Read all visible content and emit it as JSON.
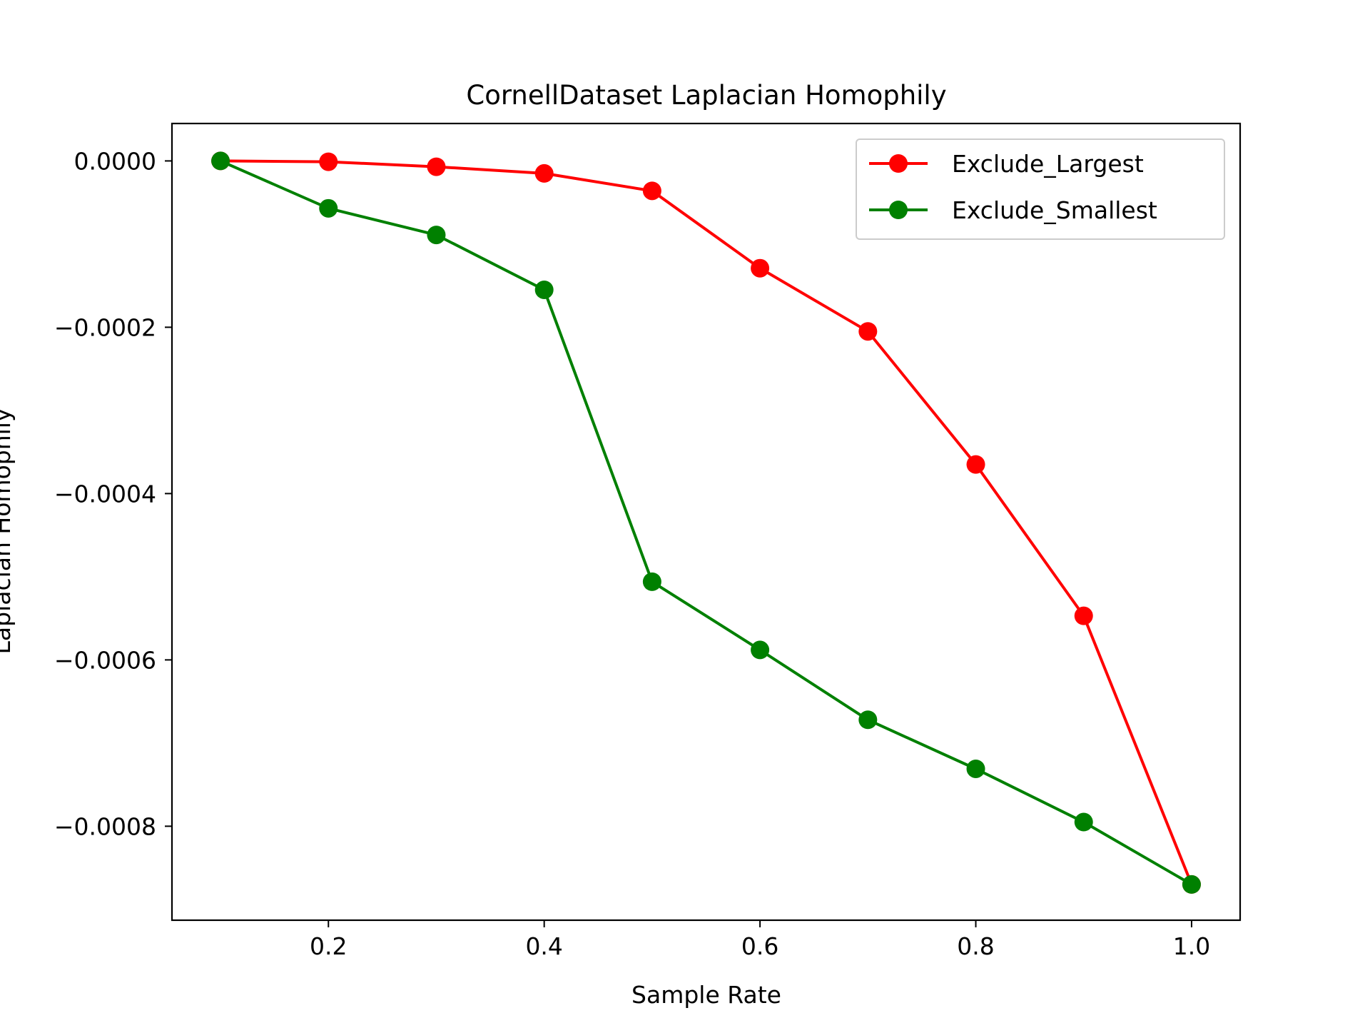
{
  "chart_data": {
    "type": "line",
    "title": "CornellDataset Laplacian Homophily",
    "xlabel": "Sample Rate",
    "ylabel": "Laplacian Homophily",
    "x": [
      0.1,
      0.2,
      0.3,
      0.4,
      0.5,
      0.6,
      0.7,
      0.8,
      0.9,
      1.0
    ],
    "xlim": [
      0.055,
      1.045
    ],
    "ylim": [
      -0.000913,
      4.5e-05
    ],
    "x_ticks": [
      0.2,
      0.4,
      0.6,
      0.8,
      1.0
    ],
    "x_tick_labels": [
      "0.2",
      "0.4",
      "0.6",
      "0.8",
      "1.0"
    ],
    "y_ticks": [
      0.0,
      -0.0002,
      -0.0004,
      -0.0006,
      -0.0008
    ],
    "y_tick_labels": [
      "0.0000",
      "−0.0002",
      "−0.0004",
      "−0.0006",
      "−0.0008"
    ],
    "grid": false,
    "legend_position": "top-right",
    "series": [
      {
        "name": "Exclude_Largest",
        "color": "#ff0000",
        "marker": "circle",
        "values": [
          0.0,
          -1e-06,
          -7e-06,
          -1.5e-05,
          -3.6e-05,
          -0.000129,
          -0.000205,
          -0.000365,
          -0.000547,
          -0.00087
        ]
      },
      {
        "name": "Exclude_Smallest",
        "color": "#008000",
        "marker": "circle",
        "values": [
          0.0,
          -5.7e-05,
          -8.9e-05,
          -0.000155,
          -0.000506,
          -0.000588,
          -0.000672,
          -0.000731,
          -0.000795,
          -0.00087
        ]
      }
    ]
  }
}
